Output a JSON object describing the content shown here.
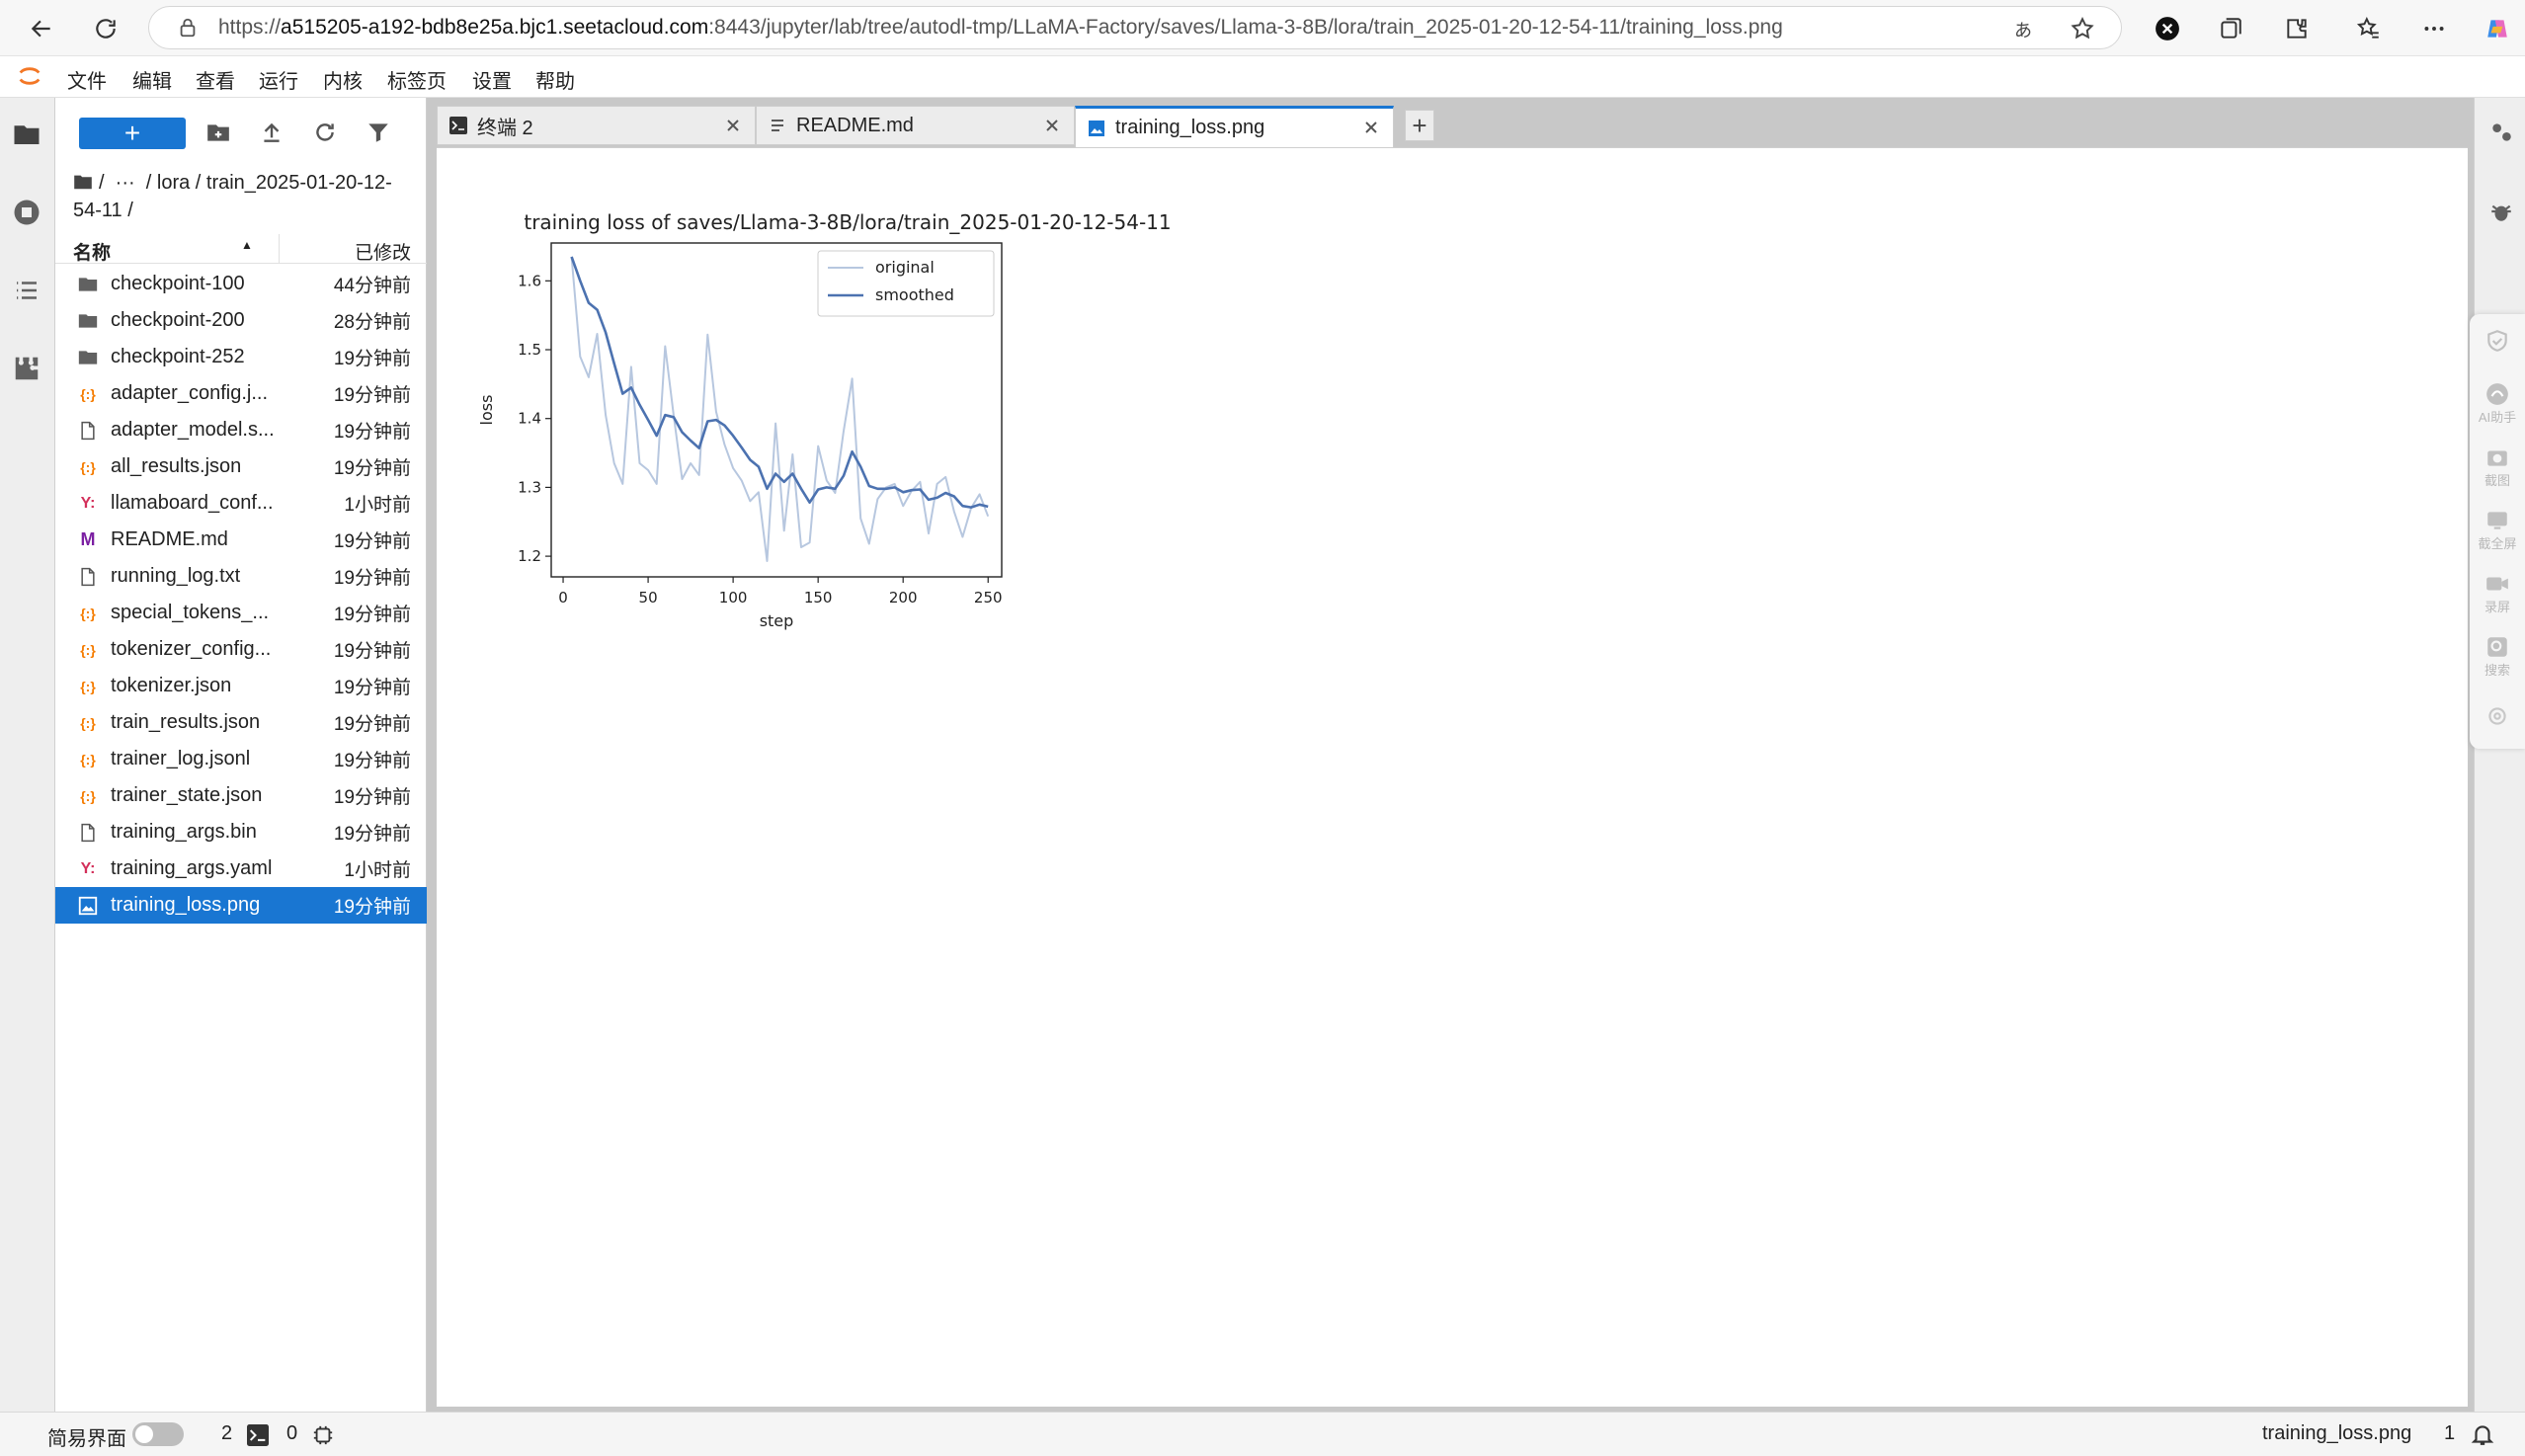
{
  "browser": {
    "url_prefix": "https://",
    "url_host": "a515205-a192-bdb8e25a.bjc1.seetacloud.com",
    "url_rest": ":8443/jupyter/lab/tree/autodl-tmp/LLaMA-Factory/saves/Llama-3-8B/lora/train_2025-01-20-12-54-11/training_loss.png"
  },
  "menu": [
    "文件",
    "编辑",
    "查看",
    "运行",
    "内核",
    "标签页",
    "设置",
    "帮助"
  ],
  "filebrowser": {
    "new_label": "+",
    "breadcrumb": "/  ···  / lora / train_2025-01-20-12-54-11 /",
    "col_name": "名称",
    "col_modified": "已修改",
    "files": [
      {
        "name": "checkpoint-100",
        "modified": "44分钟前",
        "type": "folder"
      },
      {
        "name": "checkpoint-200",
        "modified": "28分钟前",
        "type": "folder"
      },
      {
        "name": "checkpoint-252",
        "modified": "19分钟前",
        "type": "folder"
      },
      {
        "name": "adapter_config.j...",
        "modified": "19分钟前",
        "type": "json"
      },
      {
        "name": "adapter_model.s...",
        "modified": "19分钟前",
        "type": "file"
      },
      {
        "name": "all_results.json",
        "modified": "19分钟前",
        "type": "json"
      },
      {
        "name": "llamaboard_conf...",
        "modified": "1小时前",
        "type": "yaml"
      },
      {
        "name": "README.md",
        "modified": "19分钟前",
        "type": "md"
      },
      {
        "name": "running_log.txt",
        "modified": "19分钟前",
        "type": "file"
      },
      {
        "name": "special_tokens_...",
        "modified": "19分钟前",
        "type": "json"
      },
      {
        "name": "tokenizer_config...",
        "modified": "19分钟前",
        "type": "json"
      },
      {
        "name": "tokenizer.json",
        "modified": "19分钟前",
        "type": "json"
      },
      {
        "name": "train_results.json",
        "modified": "19分钟前",
        "type": "json"
      },
      {
        "name": "trainer_log.jsonl",
        "modified": "19分钟前",
        "type": "json"
      },
      {
        "name": "trainer_state.json",
        "modified": "19分钟前",
        "type": "json"
      },
      {
        "name": "training_args.bin",
        "modified": "19分钟前",
        "type": "file"
      },
      {
        "name": "training_args.yaml",
        "modified": "1小时前",
        "type": "yaml"
      },
      {
        "name": "training_loss.png",
        "modified": "19分钟前",
        "type": "image",
        "selected": true
      }
    ]
  },
  "tabs": [
    {
      "label": "终端 2",
      "icon": "terminal-icon"
    },
    {
      "label": "README.md",
      "icon": "markdown-icon"
    },
    {
      "label": "training_loss.png",
      "icon": "image-icon",
      "active": true
    }
  ],
  "floating_toolbar": [
    "AI助手",
    "截图",
    "截全屏",
    "录屏",
    "搜索"
  ],
  "status": {
    "mode_label": "简易界面",
    "terminals": "2",
    "kernels": "0",
    "filename": "training_loss.png",
    "line": "1"
  },
  "colors": {
    "accent": "#1976d2",
    "smoothed": "#4c72b0",
    "original": "#4c72b0"
  },
  "chart_data": {
    "type": "line",
    "title": "training loss of saves/Llama-3-8B/lora/train_2025-01-20-12-54-11",
    "xlabel": "step",
    "ylabel": "loss",
    "xlim": [
      -7,
      258
    ],
    "ylim": [
      1.17,
      1.655
    ],
    "xticks": [
      0,
      50,
      100,
      150,
      200,
      250
    ],
    "yticks": [
      1.2,
      1.3,
      1.4,
      1.5,
      1.6
    ],
    "legend": "top-right",
    "series": [
      {
        "name": "original",
        "x": [
          5,
          10,
          15,
          20,
          25,
          30,
          35,
          40,
          45,
          50,
          55,
          60,
          65,
          70,
          75,
          80,
          85,
          90,
          95,
          100,
          105,
          110,
          115,
          120,
          125,
          130,
          135,
          140,
          145,
          150,
          155,
          160,
          165,
          170,
          175,
          180,
          185,
          190,
          195,
          200,
          205,
          210,
          215,
          220,
          225,
          230,
          235,
          240,
          245,
          250
        ],
        "y": [
          1.635,
          1.49,
          1.46,
          1.523,
          1.405,
          1.335,
          1.305,
          1.475,
          1.335,
          1.325,
          1.305,
          1.505,
          1.405,
          1.312,
          1.335,
          1.318,
          1.522,
          1.41,
          1.362,
          1.328,
          1.31,
          1.28,
          1.293,
          1.193,
          1.393,
          1.237,
          1.348,
          1.213,
          1.22,
          1.36,
          1.31,
          1.292,
          1.382,
          1.458,
          1.255,
          1.218,
          1.283,
          1.3,
          1.305,
          1.273,
          1.295,
          1.308,
          1.233,
          1.305,
          1.315,
          1.265,
          1.228,
          1.27,
          1.29,
          1.258
        ]
      },
      {
        "name": "smoothed",
        "x": [
          5,
          10,
          15,
          20,
          25,
          30,
          35,
          40,
          45,
          50,
          55,
          60,
          65,
          70,
          75,
          80,
          85,
          90,
          95,
          100,
          105,
          110,
          115,
          120,
          125,
          130,
          135,
          140,
          145,
          150,
          155,
          160,
          165,
          170,
          175,
          180,
          185,
          190,
          195,
          200,
          205,
          210,
          215,
          220,
          225,
          230,
          235,
          240,
          245,
          250
        ],
        "y": [
          1.635,
          1.6,
          1.568,
          1.558,
          1.525,
          1.48,
          1.436,
          1.445,
          1.42,
          1.398,
          1.375,
          1.405,
          1.402,
          1.38,
          1.368,
          1.357,
          1.396,
          1.398,
          1.39,
          1.375,
          1.358,
          1.34,
          1.33,
          1.298,
          1.32,
          1.308,
          1.32,
          1.298,
          1.278,
          1.297,
          1.3,
          1.298,
          1.317,
          1.352,
          1.33,
          1.302,
          1.298,
          1.298,
          1.3,
          1.293,
          1.296,
          1.297,
          1.282,
          1.285,
          1.292,
          1.287,
          1.273,
          1.271,
          1.275,
          1.272
        ]
      }
    ]
  }
}
